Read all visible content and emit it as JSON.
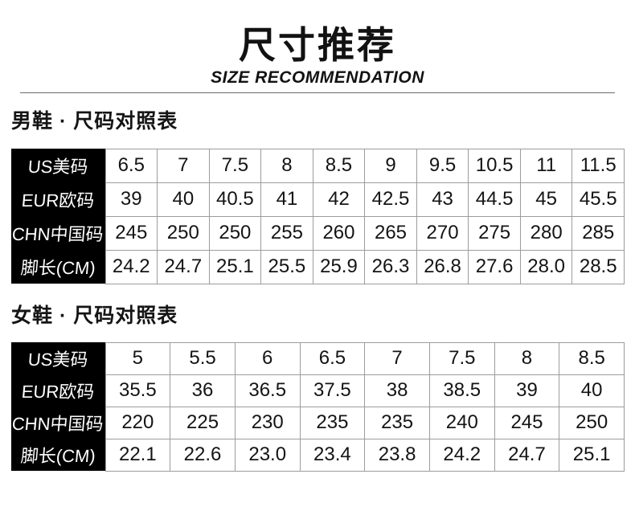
{
  "header": {
    "title": "尺寸推荐",
    "subtitle": "SIZE RECOMMENDATION"
  },
  "colors": {
    "label_bg": "#000000",
    "label_text": "#ffffff",
    "cell_border": "#9c9c9c",
    "text": "#141414",
    "divider": "#6b6b6b",
    "background": "#ffffff"
  },
  "chart_data": [
    {
      "type": "table",
      "title": "男鞋 · 尺码对照表",
      "rows": [
        {
          "label": "US美码",
          "values": [
            "6.5",
            "7",
            "7.5",
            "8",
            "8.5",
            "9",
            "9.5",
            "10.5",
            "11",
            "11.5"
          ]
        },
        {
          "label": "EUR欧码",
          "values": [
            "39",
            "40",
            "40.5",
            "41",
            "42",
            "42.5",
            "43",
            "44.5",
            "45",
            "45.5"
          ]
        },
        {
          "label": "CHN中国码",
          "values": [
            "245",
            "250",
            "250",
            "255",
            "260",
            "265",
            "270",
            "275",
            "280",
            "285"
          ]
        },
        {
          "label": "脚长(CM)",
          "values": [
            "24.2",
            "24.7",
            "25.1",
            "25.5",
            "25.9",
            "26.3",
            "26.8",
            "27.6",
            "28.0",
            "28.5"
          ]
        }
      ]
    },
    {
      "type": "table",
      "title": "女鞋 · 尺码对照表",
      "rows": [
        {
          "label": "US美码",
          "values": [
            "5",
            "5.5",
            "6",
            "6.5",
            "7",
            "7.5",
            "8",
            "8.5"
          ]
        },
        {
          "label": "EUR欧码",
          "values": [
            "35.5",
            "36",
            "36.5",
            "37.5",
            "38",
            "38.5",
            "39",
            "40"
          ]
        },
        {
          "label": "CHN中国码",
          "values": [
            "220",
            "225",
            "230",
            "235",
            "235",
            "240",
            "245",
            "250"
          ]
        },
        {
          "label": "脚长(CM)",
          "values": [
            "22.1",
            "22.6",
            "23.0",
            "23.4",
            "23.8",
            "24.2",
            "24.7",
            "25.1"
          ]
        }
      ]
    }
  ]
}
